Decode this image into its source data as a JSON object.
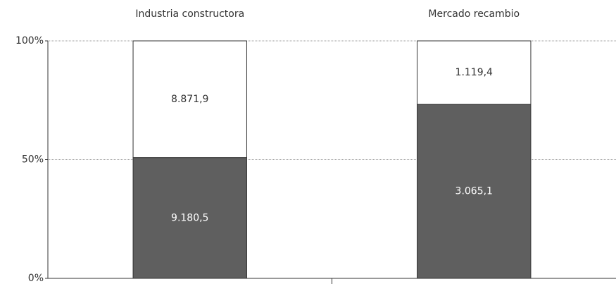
{
  "chart_data": {
    "type": "bar",
    "stacking": "percent",
    "categories": [
      "Industria constructora",
      "Mercado recambio"
    ],
    "series": [
      {
        "color": "#5f5f5f",
        "label_color": "#ffffff",
        "values": [
          9180.5,
          3065.1
        ],
        "value_labels": [
          "9.180,5",
          "3.065,1"
        ]
      },
      {
        "color": "#ffffff",
        "label_color": "#333333",
        "values": [
          8871.9,
          1119.4
        ],
        "value_labels": [
          "8.871,9",
          "1.119,4"
        ]
      }
    ],
    "ylim": [
      0,
      100
    ],
    "yticks": [
      {
        "value": 0,
        "label": "0%"
      },
      {
        "value": 50,
        "label": "50%"
      },
      {
        "value": 100,
        "label": "100%"
      }
    ],
    "grid": true
  }
}
